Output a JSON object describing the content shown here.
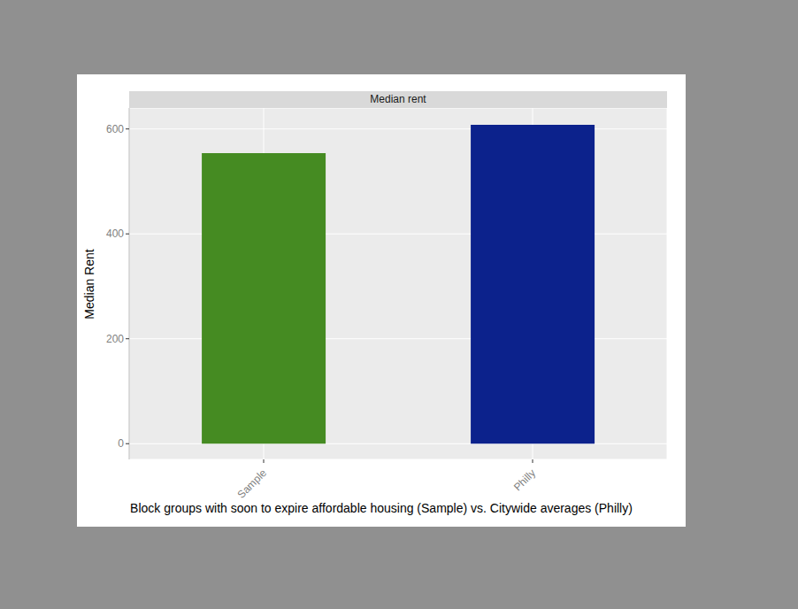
{
  "chart_data": {
    "type": "bar",
    "title": "Median rent",
    "x_label": "Block groups with soon to expire affordable housing (Sample) vs. Citywide averages (Philly)",
    "y_label": "Median Rent",
    "categories": [
      "Sample",
      "Philly"
    ],
    "values": [
      554,
      608
    ],
    "colors": [
      "#458B22",
      "#0C228C"
    ],
    "ylim": [
      -30,
      640
    ],
    "yticks": [
      0,
      200,
      400,
      600
    ],
    "grid": true
  }
}
